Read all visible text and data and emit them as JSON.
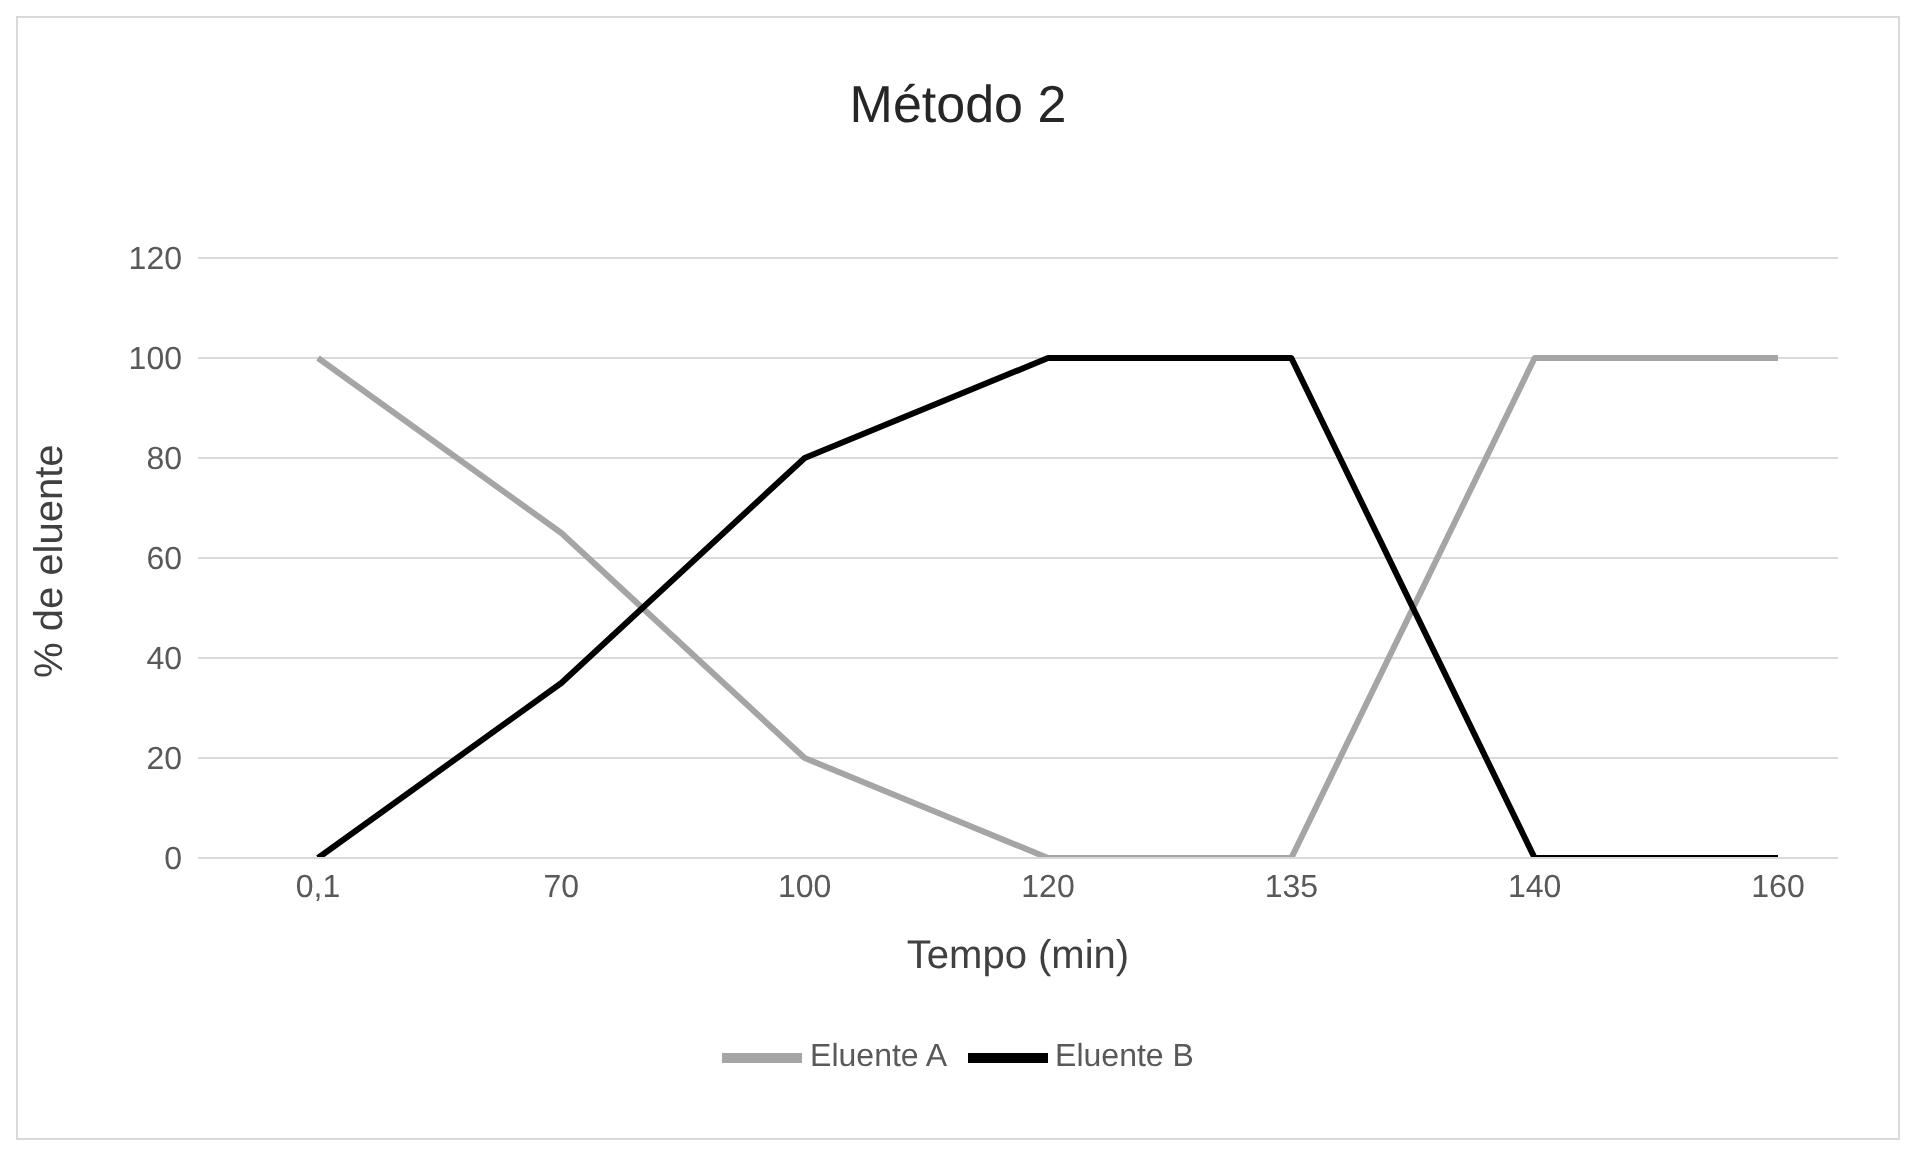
{
  "chart_data": {
    "type": "line",
    "title": "Método 2",
    "xlabel": "Tempo (min)",
    "ylabel": "% de eluente",
    "categories": [
      "0,1",
      "70",
      "100",
      "120",
      "135",
      "140",
      "160"
    ],
    "series": [
      {
        "name": "Eluente A",
        "color": "#a5a5a5",
        "values": [
          100,
          65,
          20,
          0,
          0,
          100,
          100
        ]
      },
      {
        "name": "Eluente B",
        "color": "#000000",
        "values": [
          0,
          35,
          80,
          100,
          100,
          0,
          0
        ]
      }
    ],
    "ylim": [
      0,
      120
    ],
    "yticks": [
      0,
      20,
      40,
      60,
      80,
      100,
      120
    ],
    "grid": "y",
    "legend": "bottom",
    "marker": "none",
    "line_style": "solid"
  }
}
